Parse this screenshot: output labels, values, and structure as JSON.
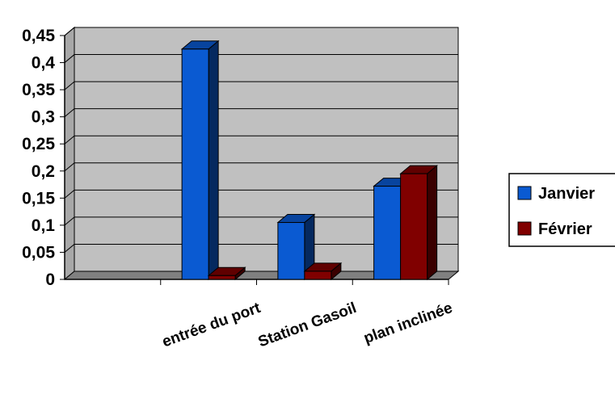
{
  "chart_data": {
    "type": "bar",
    "title": "",
    "xlabel": "",
    "ylabel": "",
    "categories": [
      "",
      "entrée  du port",
      "Station Gasoil",
      "plan inclinée"
    ],
    "series": [
      {
        "name": "Janvier",
        "values": [
          0,
          0.425,
          0.105,
          0.172
        ],
        "color": "#0A5AD2"
      },
      {
        "name": "Février",
        "values": [
          0,
          0.007,
          0.015,
          0.195
        ],
        "color": "#800000"
      }
    ],
    "ylim": [
      0,
      0.45
    ],
    "yticks": [
      "0",
      "0,05",
      "0,1",
      "0,15",
      "0,2",
      "0,25",
      "0,3",
      "0,35",
      "0,4",
      "0,45"
    ],
    "grid": true,
    "legend_position": "right",
    "plot_background": "#C0C0C0"
  }
}
